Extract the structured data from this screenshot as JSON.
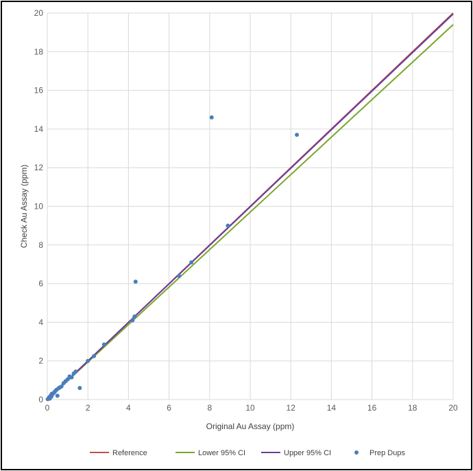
{
  "chart_data": {
    "type": "scatter",
    "title": "",
    "xlabel": "Original Au Assay (ppm)",
    "ylabel": "Check Au Assay (ppm)",
    "xlim": [
      0,
      20
    ],
    "ylim": [
      0,
      20
    ],
    "x_ticks": [
      0,
      2,
      4,
      6,
      8,
      10,
      12,
      14,
      16,
      18,
      20
    ],
    "y_ticks": [
      0,
      2,
      4,
      6,
      8,
      10,
      12,
      14,
      16,
      18,
      20
    ],
    "grid": true,
    "legend_position": "bottom",
    "series": [
      {
        "name": "Reference",
        "kind": "line",
        "color": "#c0504d",
        "x": [
          0,
          20
        ],
        "y": [
          0,
          20
        ]
      },
      {
        "name": "Lower 95% CI",
        "kind": "line",
        "color": "#7aa62a",
        "x": [
          0,
          20
        ],
        "y": [
          0,
          19.4
        ]
      },
      {
        "name": "Upper 95% CI",
        "kind": "line",
        "color": "#6a3d9a",
        "x": [
          0,
          20
        ],
        "y": [
          0,
          19.95
        ]
      },
      {
        "name": "Prep Dups",
        "kind": "scatter",
        "color": "#4a7ebb",
        "points": [
          [
            0.02,
            0.02
          ],
          [
            0.05,
            0.04
          ],
          [
            0.08,
            0.1
          ],
          [
            0.1,
            0.12
          ],
          [
            0.12,
            0.05
          ],
          [
            0.15,
            0.18
          ],
          [
            0.18,
            0.2
          ],
          [
            0.2,
            0.15
          ],
          [
            0.22,
            0.3
          ],
          [
            0.25,
            0.28
          ],
          [
            0.3,
            0.32
          ],
          [
            0.35,
            0.38
          ],
          [
            0.4,
            0.45
          ],
          [
            0.45,
            0.5
          ],
          [
            0.5,
            0.2
          ],
          [
            0.55,
            0.58
          ],
          [
            0.6,
            0.62
          ],
          [
            0.7,
            0.68
          ],
          [
            0.8,
            0.85
          ],
          [
            0.9,
            0.95
          ],
          [
            1.0,
            1.05
          ],
          [
            1.1,
            1.2
          ],
          [
            1.2,
            1.15
          ],
          [
            1.3,
            1.35
          ],
          [
            1.4,
            1.45
          ],
          [
            1.6,
            0.6
          ],
          [
            2.0,
            2.0
          ],
          [
            2.3,
            2.25
          ],
          [
            2.8,
            2.85
          ],
          [
            4.2,
            4.1
          ],
          [
            4.3,
            4.3
          ],
          [
            4.35,
            6.1
          ],
          [
            6.5,
            6.4
          ],
          [
            7.1,
            7.1
          ],
          [
            8.1,
            14.6
          ],
          [
            8.9,
            9.0
          ],
          [
            12.3,
            13.7
          ]
        ]
      }
    ]
  }
}
